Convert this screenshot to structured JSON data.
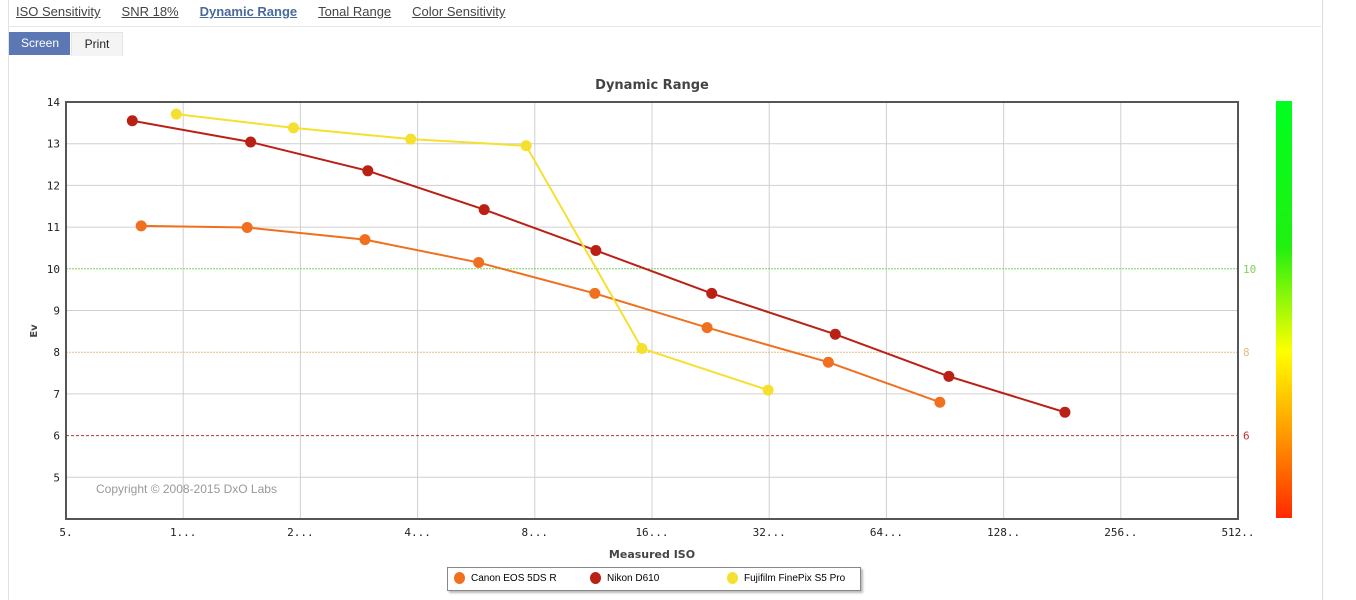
{
  "tabs": [
    {
      "label": "ISO Sensitivity",
      "active": false
    },
    {
      "label": "SNR 18%",
      "active": false
    },
    {
      "label": "Dynamic Range",
      "active": true
    },
    {
      "label": "Tonal Range",
      "active": false
    },
    {
      "label": "Color Sensitivity",
      "active": false
    }
  ],
  "modes": {
    "screen": "Screen",
    "print": "Print",
    "active": "screen"
  },
  "chart_data": {
    "type": "line",
    "title": "Dynamic Range",
    "xlabel": "Measured ISO",
    "ylabel": "Ev",
    "xscale": "log2",
    "xlim": [
      50,
      51200
    ],
    "ylim": [
      4,
      14
    ],
    "xticks": [
      50,
      100,
      200,
      400,
      800,
      1600,
      3200,
      6400,
      12800,
      25600,
      51200
    ],
    "xtick_labels": [
      "5.",
      "1...",
      "2...",
      "4...",
      "8...",
      "16...",
      "32...",
      "64...",
      "128..",
      "256..",
      "512.."
    ],
    "yticks": [
      5,
      6,
      7,
      8,
      9,
      10,
      11,
      12,
      13,
      14
    ],
    "grid": true,
    "reference_lines": [
      {
        "value": 10,
        "label": "10",
        "color": "#7ad35a"
      },
      {
        "value": 8,
        "label": "8",
        "color": "#e0c080"
      },
      {
        "value": 6,
        "label": "6",
        "color": "#c03030"
      }
    ],
    "copyright": "Copyright © 2008-2015 DxO Labs",
    "legend_position": "bottom-center",
    "series": [
      {
        "name": "Canon EOS 5DS R",
        "color": "#f07020",
        "x": [
          78,
          146,
          293,
          574,
          1141,
          2216,
          4540,
          8780
        ],
        "y": [
          11.03,
          10.99,
          10.7,
          10.15,
          9.41,
          8.59,
          7.76,
          6.8
        ]
      },
      {
        "name": "Nikon D610",
        "color": "#bb2015",
        "x": [
          74,
          149,
          298,
          593,
          1148,
          2278,
          4730,
          9260,
          18400
        ],
        "y": [
          13.55,
          13.04,
          12.35,
          11.42,
          10.44,
          9.41,
          8.43,
          7.42,
          6.56
        ]
      },
      {
        "name": "Fujifilm FinePix S5 Pro",
        "color": "#f5e030",
        "x": [
          96,
          192,
          384,
          760,
          1507,
          3180
        ],
        "y": [
          13.71,
          13.38,
          13.11,
          12.95,
          8.09,
          7.09
        ]
      }
    ]
  }
}
